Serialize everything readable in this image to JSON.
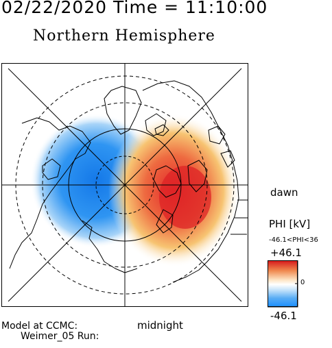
{
  "header": {
    "title": "02/22/2020 Time = 11:10:00",
    "subtitle": "Northern Hemisphere"
  },
  "map": {
    "projection": "polar",
    "hemisphere": "north",
    "labels": {
      "dawn": "dawn",
      "midnight": "midnight"
    },
    "potential_cells": [
      {
        "sign": "negative",
        "color": "#1e88f0",
        "side": "dusk"
      },
      {
        "sign": "positive",
        "color": "#e8282a",
        "side": "dawn"
      }
    ]
  },
  "colorbar": {
    "label": "PHI [kV]",
    "range_text": "-46.1<PHI<36",
    "max_label": "+46.1",
    "zero_label": "0",
    "min_label": "-46.1",
    "colors": {
      "high": "#d7191c",
      "mid": "#ffffff",
      "low": "#1e90ff"
    }
  },
  "footer": {
    "model_line": "Model at CCMC:",
    "run_line": "Weimer_05 Run:"
  }
}
